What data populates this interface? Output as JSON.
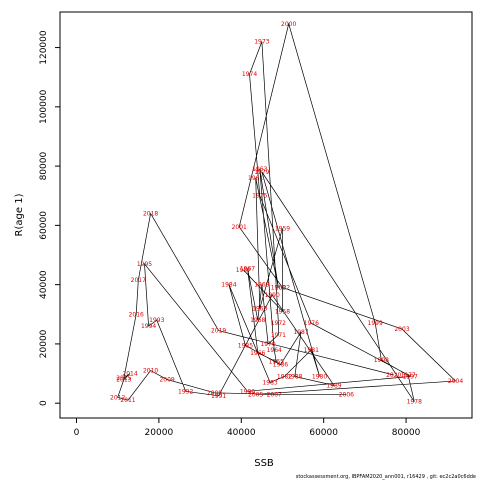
{
  "chart_data": {
    "type": "line",
    "xlabel": "SSB",
    "ylabel": "R(age 1)",
    "xlim": [
      -4000,
      96000
    ],
    "ylim": [
      -5000,
      132000
    ],
    "xticks": [
      0,
      20000,
      40000,
      60000,
      80000
    ],
    "yticks": [
      0,
      20000,
      40000,
      60000,
      80000,
      100000,
      120000
    ],
    "footer": "stockassessment.org, IBPFAM2020_ann001, r16429 , git: ec2c2a0c6dde",
    "marker_color": "#e00000",
    "points": [
      {
        "label": "1957",
        "x": 40500,
        "y": 45000
      },
      {
        "label": "1958",
        "x": 50000,
        "y": 31000
      },
      {
        "label": "1959",
        "x": 50000,
        "y": 59000
      },
      {
        "label": "1960",
        "x": 44500,
        "y": 32000
      },
      {
        "label": "1961",
        "x": 43500,
        "y": 76000
      },
      {
        "label": "1962",
        "x": 49000,
        "y": 39000
      },
      {
        "label": "1963",
        "x": 44500,
        "y": 79000
      },
      {
        "label": "1964",
        "x": 48000,
        "y": 18000
      },
      {
        "label": "1965",
        "x": 48500,
        "y": 14000
      },
      {
        "label": "1966",
        "x": 44000,
        "y": 17000
      },
      {
        "label": "1967",
        "x": 41500,
        "y": 45500
      },
      {
        "label": "1968",
        "x": 44000,
        "y": 28000
      },
      {
        "label": "1969",
        "x": 45000,
        "y": 40000
      },
      {
        "label": "1970",
        "x": 46500,
        "y": 20000
      },
      {
        "label": "1971",
        "x": 49000,
        "y": 23000
      },
      {
        "label": "1972",
        "x": 49000,
        "y": 27000
      },
      {
        "label": "1973",
        "x": 45000,
        "y": 122000
      },
      {
        "label": "1974",
        "x": 42000,
        "y": 111000
      },
      {
        "label": "1975",
        "x": 44500,
        "y": 70000
      },
      {
        "label": "1976",
        "x": 57000,
        "y": 27000
      },
      {
        "label": "1977",
        "x": 80500,
        "y": 9500
      },
      {
        "label": "1978",
        "x": 82000,
        "y": 500
      },
      {
        "label": "1979",
        "x": 45000,
        "y": 78000
      },
      {
        "label": "1980",
        "x": 59000,
        "y": 9000
      },
      {
        "label": "1981",
        "x": 57000,
        "y": 18000
      },
      {
        "label": "1982",
        "x": 50500,
        "y": 9000
      },
      {
        "label": "1983",
        "x": 47000,
        "y": 7000
      },
      {
        "label": "1984",
        "x": 37000,
        "y": 40000
      },
      {
        "label": "1985",
        "x": 41000,
        "y": 19500
      },
      {
        "label": "1986",
        "x": 49500,
        "y": 13000
      },
      {
        "label": "1987",
        "x": 54500,
        "y": 24000
      },
      {
        "label": "1988",
        "x": 53000,
        "y": 9000
      },
      {
        "label": "1989",
        "x": 62500,
        "y": 6000
      },
      {
        "label": "1990",
        "x": 47500,
        "y": 36500
      },
      {
        "label": "1991",
        "x": 34500,
        "y": 2500
      },
      {
        "label": "1992",
        "x": 26500,
        "y": 4000
      },
      {
        "label": "1993",
        "x": 19500,
        "y": 28000
      },
      {
        "label": "1994",
        "x": 17500,
        "y": 26000
      },
      {
        "label": "1995",
        "x": 16500,
        "y": 47000
      },
      {
        "label": "1996",
        "x": 41500,
        "y": 4000
      },
      {
        "label": "1997",
        "x": 81000,
        "y": 9000
      },
      {
        "label": "1998",
        "x": 74000,
        "y": 14500
      },
      {
        "label": "1999",
        "x": 72500,
        "y": 27000
      },
      {
        "label": "2000",
        "x": 51500,
        "y": 128000
      },
      {
        "label": "2001",
        "x": 39500,
        "y": 59500
      },
      {
        "label": "2002",
        "x": 50000,
        "y": 39000
      },
      {
        "label": "2003",
        "x": 79000,
        "y": 25000
      },
      {
        "label": "2004",
        "x": 92000,
        "y": 7500
      },
      {
        "label": "2005",
        "x": 43500,
        "y": 3000
      },
      {
        "label": "2006",
        "x": 65500,
        "y": 3000
      },
      {
        "label": "2007",
        "x": 48000,
        "y": 3000
      },
      {
        "label": "2008",
        "x": 33500,
        "y": 3500
      },
      {
        "label": "2009",
        "x": 22000,
        "y": 8000
      },
      {
        "label": "2010",
        "x": 18000,
        "y": 11000
      },
      {
        "label": "2011",
        "x": 12500,
        "y": 1000
      },
      {
        "label": "2012",
        "x": 10000,
        "y": 2000
      },
      {
        "label": "2013",
        "x": 11500,
        "y": 8000
      },
      {
        "label": "2014",
        "x": 13000,
        "y": 10000
      },
      {
        "label": "2015",
        "x": 11500,
        "y": 8500
      },
      {
        "label": "2016",
        "x": 14500,
        "y": 30000
      },
      {
        "label": "2017",
        "x": 15000,
        "y": 41500
      },
      {
        "label": "2018",
        "x": 18000,
        "y": 64000
      },
      {
        "label": "2019",
        "x": 34500,
        "y": 24500
      },
      {
        "label": "2020",
        "x": 77000,
        "y": 9500
      }
    ]
  }
}
